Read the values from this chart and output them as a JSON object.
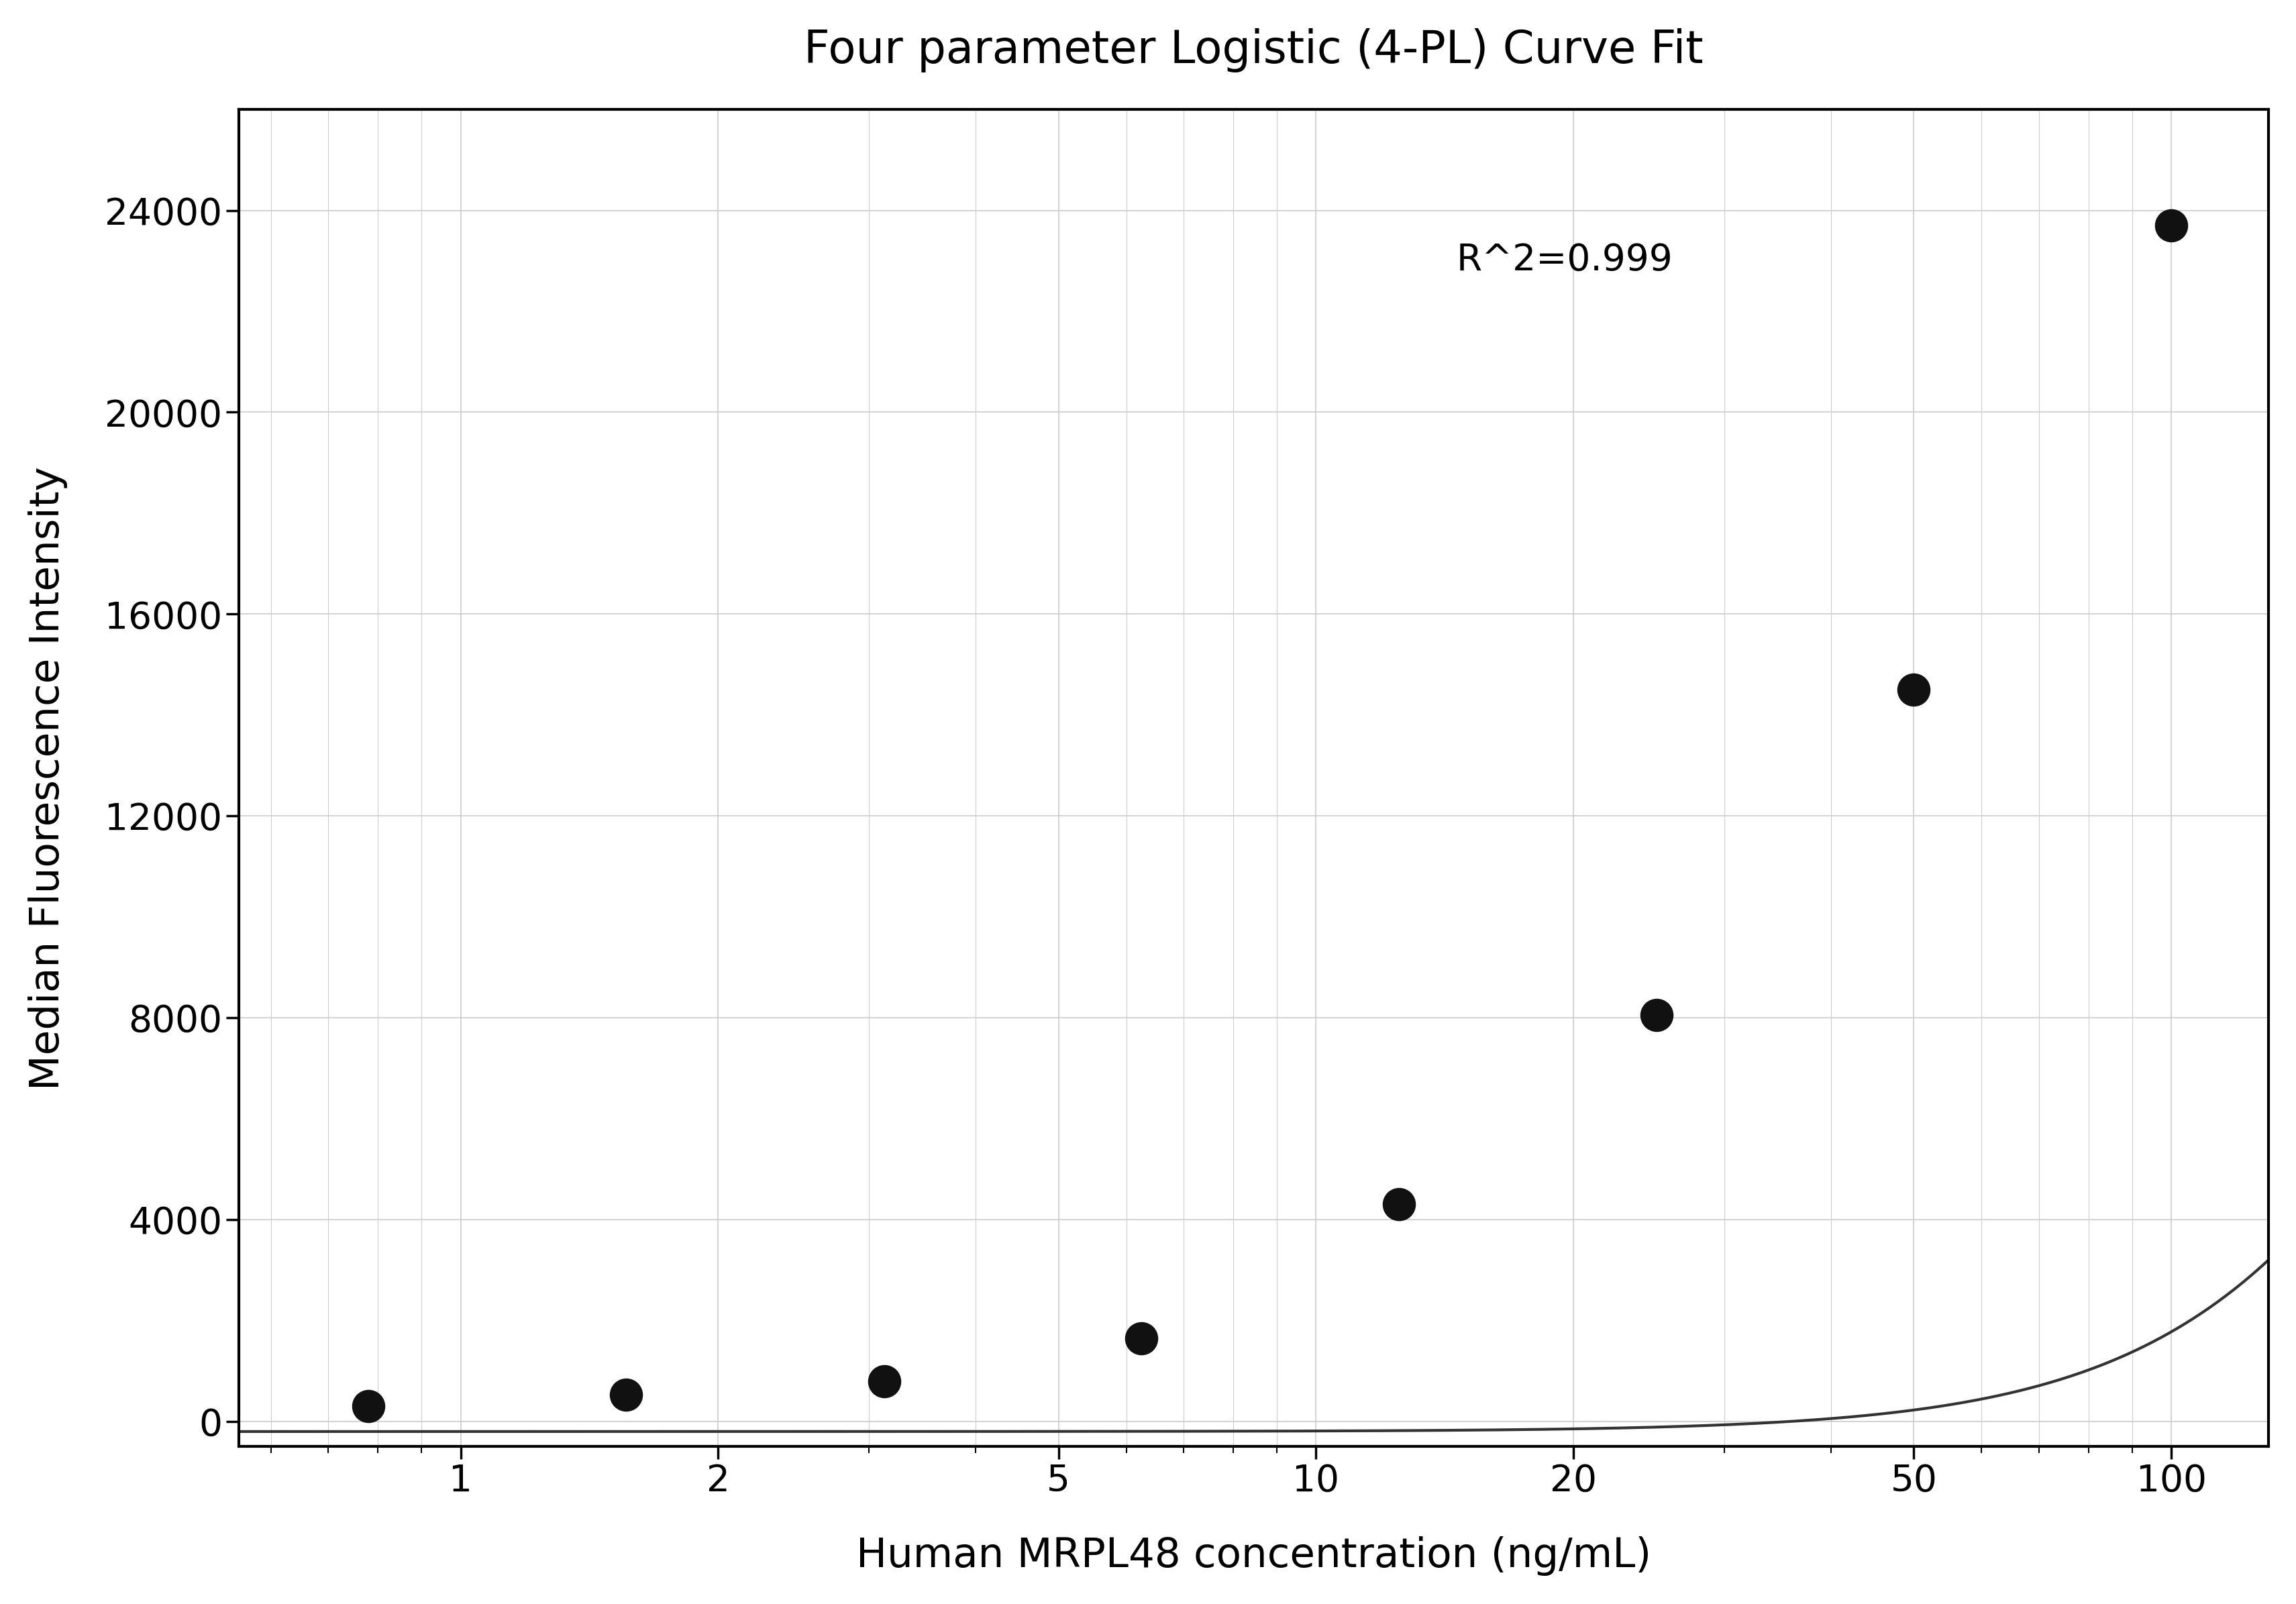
{
  "title": "Four parameter Logistic (4-PL) Curve Fit",
  "xlabel": "Human MRPL48 concentration (ng/mL)",
  "ylabel": "Median Fluorescence Intensity",
  "r_squared": "R^2=0.999",
  "data_x": [
    0.78,
    1.56,
    3.13,
    6.25,
    12.5,
    25,
    50,
    100
  ],
  "data_y": [
    300,
    530,
    800,
    1650,
    4300,
    8050,
    14500,
    23700
  ],
  "xscale": "log",
  "xlim": [
    0.55,
    130
  ],
  "ylim": [
    -500,
    26000
  ],
  "xticks": [
    1,
    2,
    5,
    10,
    20,
    50,
    100
  ],
  "yticks": [
    0,
    4000,
    8000,
    12000,
    16000,
    20000,
    24000
  ],
  "grid_color": "#cccccc",
  "line_color": "#333333",
  "dot_color": "#111111",
  "bg_color": "#ffffff",
  "4pl_A": -200,
  "4pl_B": 2.3,
  "4pl_C": 300,
  "4pl_D": 26500,
  "title_fontsize": 22,
  "label_fontsize": 20,
  "tick_fontsize": 18,
  "annot_fontsize": 18,
  "dot_size": 120
}
